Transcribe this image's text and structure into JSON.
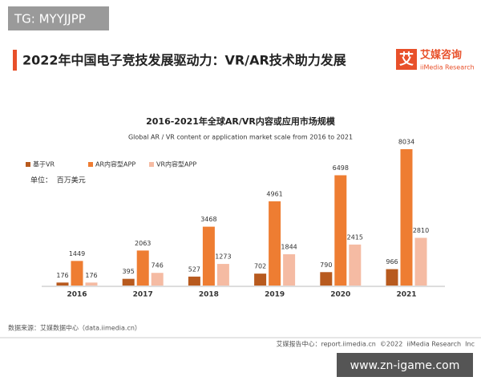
{
  "watermark_top": "TG: MYYJJPP",
  "header": {
    "title": "2022年中国电子竞技发展驱动力：VR/AR技术助力发展",
    "logo_mark": "艾",
    "logo_name": "艾媒咨询",
    "logo_sub": "iiMedia Research"
  },
  "chart_data": {
    "type": "bar",
    "title": "2016-2021年全球AR/VR内容或应用市场规模",
    "subtitle": "Global AR / VR content or application market scale from 2016 to 2021",
    "unit": "单位：  百万美元",
    "categories": [
      "2016",
      "2017",
      "2018",
      "2019",
      "2020",
      "2021"
    ],
    "series": [
      {
        "name": "基于VR",
        "color": "#b85a1e",
        "values": [
          176,
          395,
          527,
          702,
          790,
          966
        ]
      },
      {
        "name": "AR内容型APP",
        "color": "#ee7d32",
        "values": [
          1449,
          2063,
          3468,
          4961,
          6498,
          8034
        ]
      },
      {
        "name": "VR内容型APP",
        "color": "#f5bba3",
        "values": [
          176,
          746,
          1273,
          1844,
          2415,
          2810
        ]
      }
    ],
    "legend": "top-left",
    "grid": false
  },
  "source": "数据来源：艾媒数据中心（data.iimedia.cn）",
  "footer": "艾媒报告中心：report.iimedia.cn  ©2022  iiMedia Research  Inc",
  "watermark_bottom": "www.zn-igame.com"
}
